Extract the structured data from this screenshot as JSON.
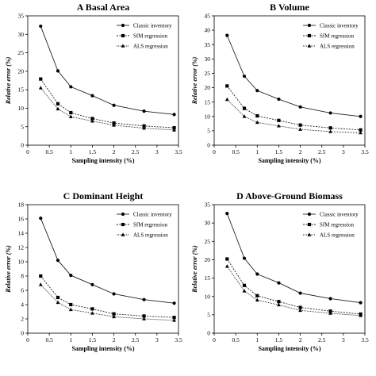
{
  "chart_data": [
    {
      "type": "line",
      "title": "A Basal Area",
      "xlabel": "Sampling intensity (%)",
      "ylabel": "Relative error (%)",
      "xlim": [
        0,
        3.5
      ],
      "ylim": [
        0,
        35
      ],
      "xticks": [
        "0",
        "0.5",
        "1",
        "1.5",
        "2",
        "2.5",
        "3",
        "3.5"
      ],
      "yticks": [
        "0",
        "5",
        "10",
        "15",
        "20",
        "25",
        "30",
        "35"
      ],
      "x": [
        0.3,
        0.7,
        1.0,
        1.5,
        2.0,
        2.7,
        3.4
      ],
      "legend_position": "top-right",
      "series": [
        {
          "name": "Classic inventory",
          "values": [
            32.2,
            20.1,
            15.8,
            13.4,
            10.8,
            9.2,
            8.3
          ]
        },
        {
          "name": "SfM regression",
          "values": [
            17.9,
            11.2,
            8.8,
            7.2,
            6.0,
            5.2,
            4.7
          ]
        },
        {
          "name": "ALS regression",
          "values": [
            15.5,
            9.8,
            7.7,
            6.5,
            5.4,
            4.6,
            4.1
          ]
        }
      ]
    },
    {
      "type": "line",
      "title": "B Volume",
      "xlabel": "Sampling intensity (%)",
      "ylabel": "Relative error (%)",
      "xlim": [
        0,
        3.5
      ],
      "ylim": [
        0,
        45
      ],
      "xticks": [
        "0",
        "0.5",
        "1",
        "1.5",
        "2",
        "2.5",
        "3",
        "3.5"
      ],
      "yticks": [
        "0",
        "5",
        "10",
        "15",
        "20",
        "25",
        "30",
        "35",
        "40",
        "45"
      ],
      "x": [
        0.3,
        0.7,
        1.0,
        1.5,
        2.0,
        2.7,
        3.4
      ],
      "legend_position": "top-right",
      "series": [
        {
          "name": "Classic inventory",
          "values": [
            38.2,
            24.0,
            19.0,
            16.0,
            13.3,
            11.2,
            10.0
          ]
        },
        {
          "name": "SfM regression",
          "values": [
            20.6,
            12.8,
            10.2,
            8.6,
            7.0,
            6.0,
            5.3
          ]
        },
        {
          "name": "ALS regression",
          "values": [
            15.9,
            10.0,
            7.9,
            6.7,
            5.5,
            4.7,
            4.3
          ]
        }
      ]
    },
    {
      "type": "line",
      "title": "C Dominant Height",
      "xlabel": "Sampling intensity (%)",
      "ylabel": "Relative error (%)",
      "xlim": [
        0,
        3.5
      ],
      "ylim": [
        0,
        18
      ],
      "xticks": [
        "0",
        "0.5",
        "1",
        "1.5",
        "2",
        "2.5",
        "3",
        "3.5"
      ],
      "yticks": [
        "0",
        "2",
        "4",
        "6",
        "8",
        "10",
        "12",
        "14",
        "16",
        "18"
      ],
      "x": [
        0.3,
        0.7,
        1.0,
        1.5,
        2.0,
        2.7,
        3.4
      ],
      "legend_position": "top-right",
      "series": [
        {
          "name": "Classic inventory",
          "values": [
            16.1,
            10.2,
            8.1,
            6.8,
            5.5,
            4.7,
            4.2
          ]
        },
        {
          "name": "SfM regression",
          "values": [
            8.0,
            5.0,
            4.0,
            3.4,
            2.7,
            2.4,
            2.2
          ]
        },
        {
          "name": "ALS regression",
          "values": [
            6.8,
            4.3,
            3.3,
            2.8,
            2.3,
            2.0,
            1.8
          ]
        }
      ]
    },
    {
      "type": "line",
      "title": "D Above-Ground Biomass",
      "xlabel": "Sampling intensity (%)",
      "ylabel": "Relative error (%)",
      "xlim": [
        0,
        3.5
      ],
      "ylim": [
        0,
        35
      ],
      "xticks": [
        "0",
        "0.5",
        "1",
        "1.5",
        "2",
        "2.5",
        "3",
        "3.5"
      ],
      "yticks": [
        "0",
        "5",
        "10",
        "15",
        "20",
        "25",
        "30",
        "35"
      ],
      "x": [
        0.3,
        0.7,
        1.0,
        1.5,
        2.0,
        2.7,
        3.4
      ],
      "legend_position": "top-right",
      "series": [
        {
          "name": "Classic inventory",
          "values": [
            32.6,
            20.4,
            16.1,
            13.7,
            10.9,
            9.4,
            8.3
          ]
        },
        {
          "name": "SfM regression",
          "values": [
            20.2,
            13.0,
            10.2,
            8.6,
            7.0,
            6.0,
            5.2
          ]
        },
        {
          "name": "ALS regression",
          "values": [
            18.2,
            11.5,
            9.0,
            7.7,
            6.2,
            5.4,
            4.8
          ]
        }
      ]
    }
  ]
}
